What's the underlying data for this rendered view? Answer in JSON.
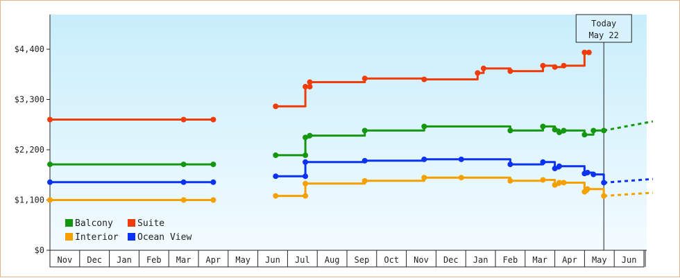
{
  "chart_data": {
    "type": "line",
    "step": true,
    "ylabel_ticks": [
      "$0",
      "$1,100",
      "$2,200",
      "$3,300",
      "$4,400"
    ],
    "ylim": [
      0,
      4400
    ],
    "months": [
      "Nov",
      "Dec",
      "Jan",
      "Feb",
      "Mar",
      "Apr",
      "May",
      "Jun",
      "Jul",
      "Aug",
      "Sep",
      "Oct",
      "Nov",
      "Dec",
      "Jan",
      "Feb",
      "Mar",
      "Apr",
      "May",
      "Jun"
    ],
    "today_label_line1": "Today",
    "today_label_line2": "May 22",
    "today_x": 18.65,
    "legend": [
      {
        "name": "Balcony",
        "color": "#14960f"
      },
      {
        "name": "Suite",
        "color": "#f03c0a"
      },
      {
        "name": "Interior",
        "color": "#f5a000"
      },
      {
        "name": "Ocean View",
        "color": "#0a32f0"
      }
    ],
    "series": [
      {
        "name": "Suite",
        "color": "#f03c0a",
        "segments": [
          {
            "points": [
              [
                0,
                2860
              ],
              [
                4.5,
                2860
              ],
              [
                5.5,
                2860
              ]
            ]
          },
          {
            "points": [
              [
                7.6,
                3150
              ],
              [
                8.6,
                3150
              ],
              [
                8.6,
                3580
              ],
              [
                8.75,
                3580
              ],
              [
                8.75,
                3680
              ],
              [
                10.6,
                3680
              ],
              [
                10.6,
                3760
              ],
              [
                12.6,
                3760
              ],
              [
                12.6,
                3740
              ],
              [
                14.4,
                3740
              ],
              [
                14.4,
                3880
              ],
              [
                14.6,
                3880
              ],
              [
                14.6,
                3980
              ],
              [
                15.5,
                3980
              ],
              [
                15.5,
                3920
              ],
              [
                16.6,
                3920
              ],
              [
                16.6,
                4040
              ],
              [
                17,
                4040
              ],
              [
                17,
                4010
              ],
              [
                17.3,
                4010
              ],
              [
                17.3,
                4040
              ],
              [
                18,
                4040
              ],
              [
                18,
                4330
              ],
              [
                18.15,
                4330
              ]
            ]
          }
        ]
      },
      {
        "name": "Balcony",
        "color": "#14960f",
        "segments": [
          {
            "points": [
              [
                0,
                1880
              ],
              [
                4.5,
                1880
              ],
              [
                5.5,
                1880
              ]
            ]
          },
          {
            "points": [
              [
                7.6,
                2080
              ],
              [
                8.6,
                2080
              ],
              [
                8.6,
                2470
              ],
              [
                8.75,
                2470
              ],
              [
                8.75,
                2510
              ],
              [
                10.6,
                2510
              ],
              [
                10.6,
                2620
              ],
              [
                12.6,
                2620
              ],
              [
                12.6,
                2710
              ],
              [
                15.5,
                2710
              ],
              [
                15.5,
                2620
              ],
              [
                16.6,
                2620
              ],
              [
                16.6,
                2710
              ],
              [
                17,
                2710
              ],
              [
                17,
                2640
              ],
              [
                17.15,
                2640
              ],
              [
                17.15,
                2580
              ],
              [
                17.3,
                2580
              ],
              [
                17.3,
                2620
              ],
              [
                18,
                2620
              ],
              [
                18,
                2530
              ],
              [
                18.3,
                2530
              ],
              [
                18.3,
                2620
              ],
              [
                18.65,
                2620
              ]
            ]
          }
        ]
      },
      {
        "name": "Ocean View",
        "color": "#0a32f0",
        "segments": [
          {
            "points": [
              [
                0,
                1490
              ],
              [
                4.5,
                1490
              ],
              [
                5.5,
                1490
              ]
            ]
          },
          {
            "points": [
              [
                7.6,
                1620
              ],
              [
                8.6,
                1620
              ],
              [
                8.6,
                1930
              ],
              [
                10.6,
                1930
              ],
              [
                10.6,
                1960
              ],
              [
                12.6,
                1960
              ],
              [
                12.6,
                1990
              ],
              [
                15.5,
                1990
              ],
              [
                15.5,
                1880
              ],
              [
                16.6,
                1880
              ],
              [
                16.6,
                1930
              ],
              [
                17,
                1930
              ],
              [
                17,
                1790
              ],
              [
                17.15,
                1790
              ],
              [
                17.15,
                1840
              ],
              [
                18,
                1840
              ],
              [
                18,
                1680
              ],
              [
                18.1,
                1680
              ],
              [
                18.1,
                1700
              ],
              [
                18.3,
                1700
              ],
              [
                18.3,
                1660
              ],
              [
                18.65,
                1660
              ],
              [
                18.65,
                1480
              ]
            ]
          }
        ]
      },
      {
        "name": "Interior",
        "color": "#f5a000",
        "segments": [
          {
            "points": [
              [
                0,
                1100
              ],
              [
                4.5,
                1100
              ],
              [
                5.5,
                1100
              ]
            ]
          },
          {
            "points": [
              [
                7.6,
                1190
              ],
              [
                8.6,
                1190
              ],
              [
                8.6,
                1460
              ],
              [
                10.6,
                1460
              ],
              [
                10.6,
                1520
              ],
              [
                12.6,
                1520
              ],
              [
                12.6,
                1590
              ],
              [
                15.5,
                1590
              ],
              [
                15.5,
                1520
              ],
              [
                16.6,
                1520
              ],
              [
                16.6,
                1540
              ],
              [
                17,
                1540
              ],
              [
                17,
                1430
              ],
              [
                17.15,
                1430
              ],
              [
                17.15,
                1480
              ],
              [
                18,
                1480
              ],
              [
                18,
                1280
              ],
              [
                18.1,
                1280
              ],
              [
                18.1,
                1340
              ],
              [
                18.65,
                1340
              ],
              [
                18.65,
                1190
              ]
            ]
          }
        ]
      }
    ],
    "projections": [
      {
        "name": "Balcony",
        "color": "#14960f",
        "points": [
          [
            18.65,
            2620
          ],
          [
            20.3,
            2820
          ]
        ]
      },
      {
        "name": "Ocean View",
        "color": "#0a32f0",
        "points": [
          [
            18.65,
            1480
          ],
          [
            20.3,
            1560
          ]
        ]
      },
      {
        "name": "Interior",
        "color": "#f5a000",
        "points": [
          [
            18.65,
            1190
          ],
          [
            20.3,
            1260
          ]
        ]
      }
    ],
    "markers": {
      "Suite": [
        [
          0,
          2860
        ],
        [
          4.5,
          2860
        ],
        [
          5.5,
          2860
        ],
        [
          7.6,
          3150
        ],
        [
          8.6,
          3580
        ],
        [
          8.75,
          3680
        ],
        [
          10.6,
          3760
        ],
        [
          12.6,
          3740
        ],
        [
          14.4,
          3880
        ],
        [
          14.6,
          3980
        ],
        [
          15.5,
          3920
        ],
        [
          16.6,
          4040
        ],
        [
          17,
          4010
        ],
        [
          17.3,
          4040
        ],
        [
          18,
          4330
        ],
        [
          18.15,
          4330
        ],
        [
          8.75,
          3580
        ]
      ],
      "Balcony": [
        [
          0,
          1880
        ],
        [
          4.5,
          1880
        ],
        [
          5.5,
          1880
        ],
        [
          7.6,
          2080
        ],
        [
          8.6,
          2470
        ],
        [
          8.75,
          2510
        ],
        [
          10.6,
          2620
        ],
        [
          12.6,
          2710
        ],
        [
          15.5,
          2620
        ],
        [
          16.6,
          2710
        ],
        [
          17,
          2640
        ],
        [
          17.15,
          2580
        ],
        [
          17.3,
          2620
        ],
        [
          18,
          2530
        ],
        [
          18.3,
          2620
        ],
        [
          18.65,
          2620
        ],
        [
          8.6,
          2080
        ]
      ],
      "Ocean View": [
        [
          0,
          1490
        ],
        [
          4.5,
          1490
        ],
        [
          5.5,
          1490
        ],
        [
          7.6,
          1620
        ],
        [
          8.6,
          1930
        ],
        [
          10.6,
          1960
        ],
        [
          12.6,
          1990
        ],
        [
          15.5,
          1880
        ],
        [
          16.6,
          1930
        ],
        [
          17,
          1790
        ],
        [
          17.15,
          1840
        ],
        [
          18,
          1680
        ],
        [
          18.1,
          1700
        ],
        [
          18.3,
          1660
        ],
        [
          18.65,
          1480
        ],
        [
          13.85,
          1990
        ],
        [
          8.6,
          1620
        ]
      ],
      "Interior": [
        [
          0,
          1100
        ],
        [
          4.5,
          1100
        ],
        [
          5.5,
          1100
        ],
        [
          7.6,
          1190
        ],
        [
          8.6,
          1460
        ],
        [
          10.6,
          1520
        ],
        [
          12.6,
          1590
        ],
        [
          15.5,
          1520
        ],
        [
          16.6,
          1540
        ],
        [
          17,
          1430
        ],
        [
          17.15,
          1480
        ],
        [
          18,
          1280
        ],
        [
          18.1,
          1340
        ],
        [
          18.65,
          1190
        ],
        [
          13.85,
          1590
        ],
        [
          17.3,
          1480
        ],
        [
          8.6,
          1190
        ]
      ]
    }
  }
}
